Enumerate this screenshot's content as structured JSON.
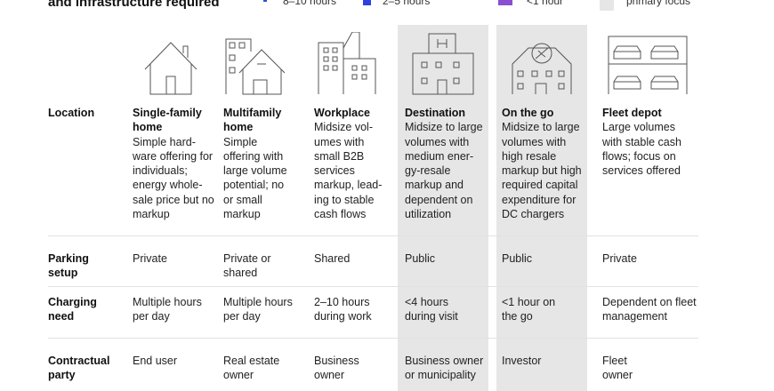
{
  "title": "and infrastructure required",
  "legend": [
    {
      "label": "8–10 hours",
      "color": "#2c4fd6"
    },
    {
      "label": "2–5 hours",
      "color": "#2f3fe0"
    },
    {
      "label": "<1 hour",
      "color": "#8a4fd0"
    },
    {
      "label": "primary focus",
      "color": "#e6e6e6"
    }
  ],
  "columns": [
    {
      "icon": "single-family-home-icon",
      "name": "Single-family home",
      "desc": "Simple hard-ware offering for individuals; energy whole-sale price but no markup",
      "parking": "Private",
      "charging": "Multiple hours per day",
      "party": "End user"
    },
    {
      "icon": "multifamily-home-icon",
      "name": "Multifamily home",
      "desc": "Simple offering with large volume potential; no or small markup",
      "parking": "Private or shared",
      "charging": "Multiple hours per day",
      "party": "Real estate owner"
    },
    {
      "icon": "workplace-icon",
      "name": "Workplace",
      "desc": "Midsize vol-umes with small B2B services markup, lead-ing to stable cash flows",
      "parking": "Shared",
      "charging": "2–10 hours during work",
      "party": "Business owner"
    },
    {
      "icon": "destination-icon",
      "name": "Destination",
      "desc": "Midsize to large volumes with medium ener-gy-resale markup and dependent on utilization",
      "parking": "Public",
      "charging": "<4 hours during visit",
      "party": "Business owner or municipality"
    },
    {
      "icon": "on-the-go-icon",
      "name": "On the go",
      "desc": "Midsize to large volumes with high resale markup but high required capital expenditure for DC chargers",
      "parking": "Public",
      "charging": "<1 hour on the go",
      "party": "Investor"
    },
    {
      "icon": "fleet-depot-icon",
      "name": "Fleet depot",
      "desc": "Large volumes with stable cash flows; focus on services offered",
      "parking": "Private",
      "charging": "Dependent on fleet management",
      "party": "Fleet owner"
    }
  ],
  "rows": {
    "location": "Location",
    "parking": "Parking setup",
    "charging": "Charging need",
    "party": "Contractual party"
  }
}
